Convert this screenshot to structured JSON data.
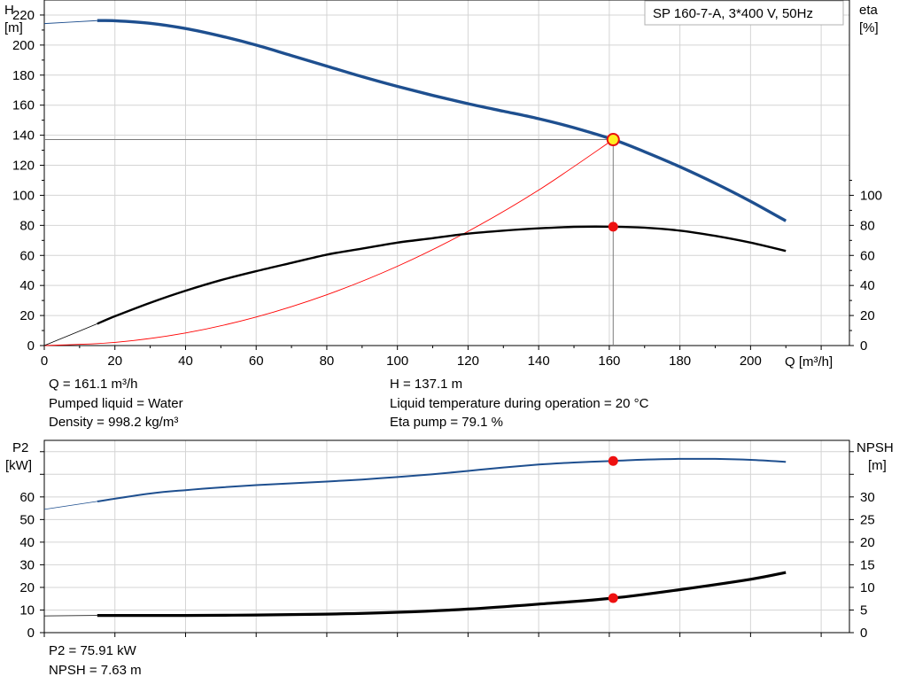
{
  "chart_data": [
    {
      "type": "line",
      "title": "SP 160-7-A, 3*400 V, 50Hz",
      "xlabel": "Q [m³/h]",
      "ylabel_left": "H",
      "ylabel_left_unit": "[m]",
      "ylabel_right": "eta",
      "ylabel_right_unit": "[%]",
      "xlim": [
        0,
        228
      ],
      "ylim_left": [
        0,
        230
      ],
      "ylim_right": [
        0,
        230
      ],
      "x_ticks": [
        "0",
        "20",
        "40",
        "60",
        "80",
        "100",
        "120",
        "140",
        "160",
        "180",
        "200"
      ],
      "y_left_ticks": [
        "0",
        "20",
        "40",
        "60",
        "80",
        "100",
        "120",
        "140",
        "160",
        "180",
        "200",
        "220"
      ],
      "y_right_ticks": [
        "0",
        "20",
        "40",
        "60",
        "80",
        "100"
      ],
      "grid": true,
      "series": [
        {
          "name": "H",
          "color": "#1e4f8f",
          "extension": [
            [
              0,
              214.3
            ],
            [
              15,
              216.3
            ]
          ],
          "points": [
            [
              15,
              216.3
            ],
            [
              20,
              216.2
            ],
            [
              30,
              214.5
            ],
            [
              40,
              211
            ],
            [
              50,
              206
            ],
            [
              60,
              200
            ],
            [
              70,
              193
            ],
            [
              80,
              186
            ],
            [
              90,
              179
            ],
            [
              100,
              172.5
            ],
            [
              110,
              166.5
            ],
            [
              120,
              161
            ],
            [
              130,
              156
            ],
            [
              140,
              151
            ],
            [
              150,
              145
            ],
            [
              161.1,
              137.1
            ],
            [
              170,
              129
            ],
            [
              180,
              119
            ],
            [
              190,
              108
            ],
            [
              200,
              96
            ],
            [
              210,
              83
            ]
          ]
        },
        {
          "name": "eta",
          "color": "#000000",
          "extension": [
            [
              0,
              0
            ],
            [
              15,
              14.5
            ]
          ],
          "points": [
            [
              15,
              14.5
            ],
            [
              20,
              19.5
            ],
            [
              30,
              28.5
            ],
            [
              40,
              36.5
            ],
            [
              50,
              43.5
            ],
            [
              60,
              49.5
            ],
            [
              70,
              55
            ],
            [
              80,
              60.5
            ],
            [
              90,
              64.5
            ],
            [
              100,
              68.5
            ],
            [
              110,
              71.5
            ],
            [
              120,
              74.5
            ],
            [
              130,
              76.5
            ],
            [
              140,
              78
            ],
            [
              150,
              79
            ],
            [
              161.1,
              79.1
            ],
            [
              170,
              78.5
            ],
            [
              180,
              76.5
            ],
            [
              190,
              73
            ],
            [
              200,
              68.5
            ],
            [
              210,
              63
            ]
          ]
        },
        {
          "name": "system curve",
          "color": "#ff0000",
          "points": [
            [
              0,
              0
            ],
            [
              20,
              2.1
            ],
            [
              40,
              8.4
            ],
            [
              60,
              19
            ],
            [
              80,
              33.8
            ],
            [
              100,
              52.8
            ],
            [
              120,
              76
            ],
            [
              140,
              103.5
            ],
            [
              161.1,
              137.1
            ]
          ]
        }
      ],
      "operating_point": {
        "Q": 161.1,
        "H": 137.1,
        "eta": 79.1
      }
    },
    {
      "type": "line",
      "ylabel_left": "P2",
      "ylabel_left_unit": "[kW]",
      "ylabel_right": "NPSH",
      "ylabel_right_unit": "[m]",
      "xlim": [
        0,
        228
      ],
      "ylim_left": [
        0,
        85
      ],
      "ylim_right": [
        0,
        42.5
      ],
      "y_left_ticks": [
        "0",
        "10",
        "20",
        "30",
        "40",
        "50",
        "60"
      ],
      "y_right_ticks": [
        "0",
        "5",
        "10",
        "15",
        "20",
        "25",
        "30"
      ],
      "grid": true,
      "series": [
        {
          "name": "P2",
          "color": "#1e4f8f",
          "axis": "left",
          "extension": [
            [
              0,
              54.5
            ],
            [
              15,
              58
            ]
          ],
          "points": [
            [
              15,
              58
            ],
            [
              30,
              61.5
            ],
            [
              40,
              63
            ],
            [
              50,
              64.2
            ],
            [
              60,
              65.2
            ],
            [
              70,
              66
            ],
            [
              80,
              66.8
            ],
            [
              90,
              67.7
            ],
            [
              100,
              68.8
            ],
            [
              110,
              70
            ],
            [
              120,
              71.5
            ],
            [
              130,
              73
            ],
            [
              140,
              74.3
            ],
            [
              150,
              75.2
            ],
            [
              161.1,
              75.91
            ],
            [
              170,
              76.5
            ],
            [
              180,
              76.8
            ],
            [
              190,
              76.8
            ],
            [
              200,
              76.4
            ],
            [
              210,
              75.5
            ]
          ]
        },
        {
          "name": "NPSH",
          "color": "#000000",
          "axis": "right",
          "extension": [
            [
              0,
              3.7
            ],
            [
              15,
              3.8
            ]
          ],
          "points": [
            [
              15,
              3.8
            ],
            [
              40,
              3.8
            ],
            [
              60,
              3.9
            ],
            [
              80,
              4.1
            ],
            [
              100,
              4.5
            ],
            [
              120,
              5.2
            ],
            [
              140,
              6.3
            ],
            [
              161.1,
              7.63
            ],
            [
              180,
              9.5
            ],
            [
              200,
              11.8
            ],
            [
              210,
              13.3
            ]
          ]
        }
      ],
      "operating_point": {
        "Q": 161.1,
        "P2": 75.91,
        "NPSH": 7.63
      }
    }
  ],
  "info_top": {
    "q": "Q = 161.1 m³/h",
    "liquid": "Pumped liquid = Water",
    "density": "Density = 998.2 kg/m³",
    "h": "H = 137.1 m",
    "temp": "Liquid temperature during operation = 20 °C",
    "eta": "Eta pump = 79.1 %"
  },
  "info_bottom": {
    "p2": "P2 = 75.91 kW",
    "npsh": "NPSH = 7.63 m"
  }
}
